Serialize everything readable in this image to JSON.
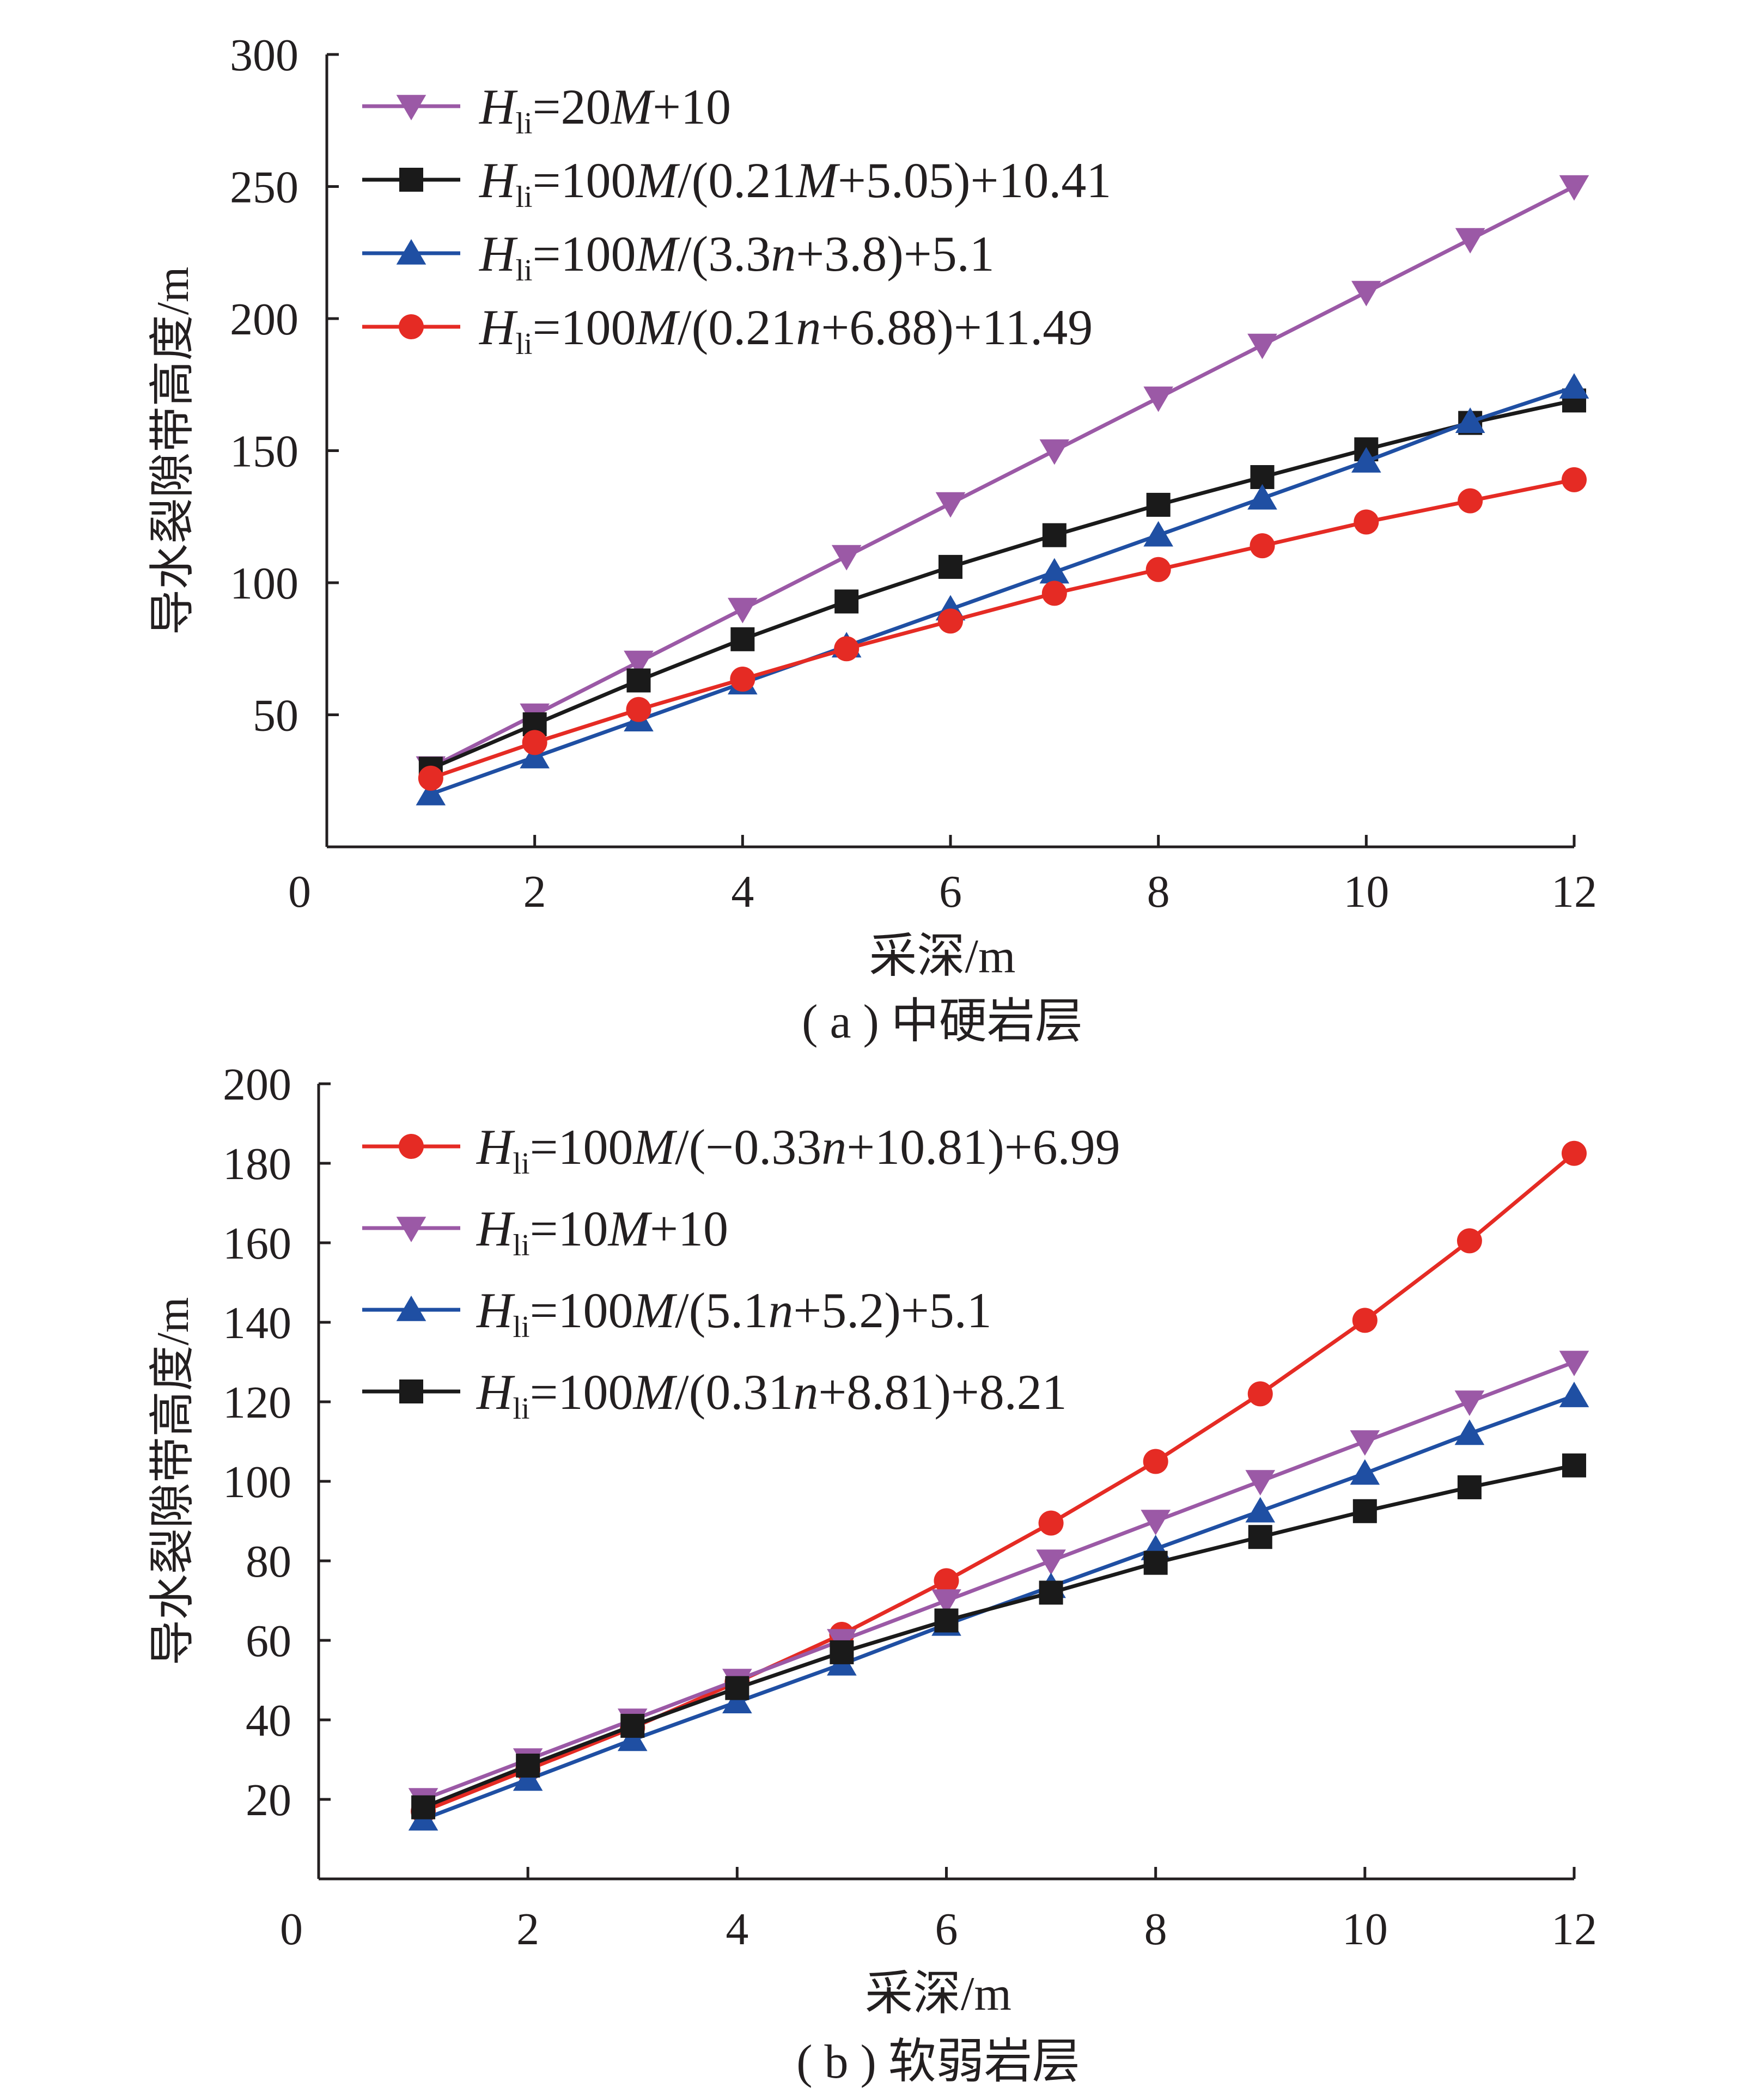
{
  "chart_data": [
    {
      "type": "line",
      "caption": "( a ) 中硬岩层",
      "xlabel": "采深/m",
      "ylabel": "导水裂隙带高度/m",
      "xlim": [
        0,
        12
      ],
      "ylim": [
        0,
        300
      ],
      "xticks": [
        0,
        2,
        4,
        6,
        8,
        10,
        12
      ],
      "yticks": [
        50,
        100,
        150,
        200,
        250,
        300
      ],
      "grid": false,
      "legend_position": "top-left",
      "x": [
        1,
        2,
        3,
        4,
        5,
        6,
        7,
        8,
        9,
        10,
        11,
        12
      ],
      "series": [
        {
          "key": "a1",
          "legend": {
            "h": "H",
            "sub": "li",
            "parts": [
              [
                "=20",
                false
              ],
              [
                "M",
                true
              ],
              [
                "+10",
                false
              ]
            ]
          },
          "color": "#9b59a6",
          "marker": "triangle-down",
          "values": [
            30,
            50,
            70,
            90,
            110,
            130,
            150,
            170,
            190,
            210,
            230,
            250
          ]
        },
        {
          "key": "a2",
          "legend": {
            "h": "H",
            "sub": "li",
            "parts": [
              [
                "=100",
                false
              ],
              [
                "M",
                true
              ],
              [
                "/(0.21",
                false
              ],
              [
                "M",
                true
              ],
              [
                "+5.05)+10.41",
                false
              ]
            ]
          },
          "color": "#1a1a1a",
          "marker": "square",
          "values": [
            29.6,
            46.4,
            63,
            78.6,
            92.9,
            106,
            118,
            129.5,
            140,
            150.5,
            160.5,
            169
          ]
        },
        {
          "key": "a3",
          "legend": {
            "h": "H",
            "sub": "li",
            "parts": [
              [
                "=100",
                false
              ],
              [
                "M",
                true
              ],
              [
                "/(3.3",
                false
              ],
              [
                "n",
                true
              ],
              [
                "+3.8)+5.1",
                false
              ]
            ]
          },
          "color": "#1f4fa3",
          "marker": "triangle-up",
          "values": [
            20,
            34,
            48,
            62,
            76,
            90,
            104,
            118,
            132,
            146,
            161,
            174
          ]
        },
        {
          "key": "a4",
          "legend": {
            "h": "H",
            "sub": "li",
            "parts": [
              [
                "=100",
                false
              ],
              [
                "M",
                true
              ],
              [
                "/(0.21",
                false
              ],
              [
                "n",
                true
              ],
              [
                "+6.88)+11.49",
                false
              ]
            ]
          },
          "color": "#e52b24",
          "marker": "circle",
          "values": [
            26,
            39.5,
            52,
            63.5,
            75,
            85.5,
            96,
            105,
            114,
            123,
            131,
            139
          ]
        }
      ]
    },
    {
      "type": "line",
      "caption": "( b ) 软弱岩层",
      "xlabel": "采深/m",
      "ylabel": "导水裂隙带高度/m",
      "xlim": [
        0,
        12
      ],
      "ylim": [
        0,
        200
      ],
      "xticks": [
        0,
        2,
        4,
        6,
        8,
        10,
        12
      ],
      "yticks": [
        20,
        40,
        60,
        80,
        100,
        120,
        140,
        160,
        180,
        200
      ],
      "grid": false,
      "legend_position": "top-left",
      "x": [
        1,
        2,
        3,
        4,
        5,
        6,
        7,
        8,
        9,
        10,
        11,
        12
      ],
      "series": [
        {
          "key": "b1",
          "legend": {
            "h": "H",
            "sub": "li",
            "parts": [
              [
                "=100",
                false
              ],
              [
                "M",
                true
              ],
              [
                "/(−0.33",
                false
              ],
              [
                "n",
                true
              ],
              [
                "+10.81)+6.99",
                false
              ]
            ]
          },
          "color": "#e52b24",
          "marker": "circle",
          "values": [
            17,
            27.5,
            38,
            49.5,
            61.5,
            75,
            89.5,
            105,
            122,
            140.5,
            160.5,
            182.5
          ]
        },
        {
          "key": "b2",
          "legend": {
            "h": "H",
            "sub": "li",
            "parts": [
              [
                "=10",
                false
              ],
              [
                "M",
                true
              ],
              [
                "+10",
                false
              ]
            ]
          },
          "color": "#9b59a6",
          "marker": "triangle-down",
          "values": [
            20,
            30,
            40,
            50,
            60,
            70,
            80,
            90,
            100,
            110,
            120,
            130
          ]
        },
        {
          "key": "b3",
          "legend": {
            "h": "H",
            "sub": "li",
            "parts": [
              [
                "=100",
                false
              ],
              [
                "M",
                true
              ],
              [
                "/(5.1",
                false
              ],
              [
                "n",
                true
              ],
              [
                "+5.2)+5.1",
                false
              ]
            ]
          },
          "color": "#1f4fa3",
          "marker": "triangle-up",
          "values": [
            15,
            25,
            35,
            44.5,
            54,
            64,
            73.5,
            83,
            92.5,
            102,
            112,
            121.5
          ]
        },
        {
          "key": "b4",
          "legend": {
            "h": "H",
            "sub": "li",
            "parts": [
              [
                "=100",
                false
              ],
              [
                "M",
                true
              ],
              [
                "/(0.31",
                false
              ],
              [
                "n",
                true
              ],
              [
                "+8.81)+8.21",
                false
              ]
            ]
          },
          "color": "#1a1a1a",
          "marker": "square",
          "values": [
            18,
            28.5,
            38.5,
            48,
            57,
            65,
            72,
            79.5,
            86,
            92.5,
            98.5,
            104
          ]
        }
      ]
    }
  ]
}
